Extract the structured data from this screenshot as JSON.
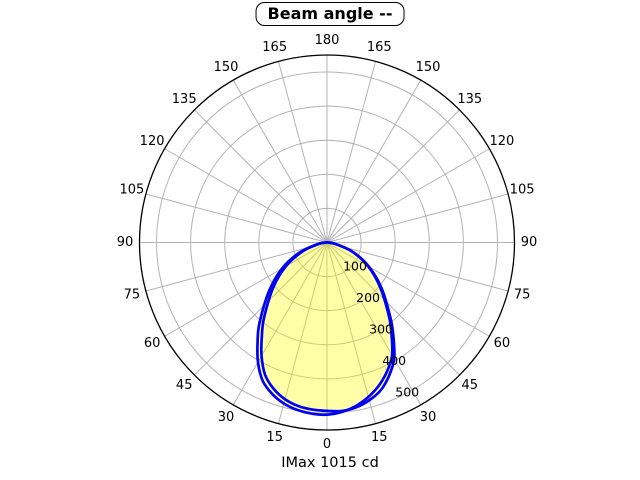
{
  "chart_data": {
    "type": "polar",
    "title": "Beam angle --",
    "footer": "IMax 1015 cd",
    "angle_unit": "degrees",
    "angle_zero_position": "bottom",
    "angle_tick_step_deg": 15,
    "angle_labels": [
      "0",
      "15",
      "30",
      "45",
      "60",
      "75",
      "90",
      "105",
      "120",
      "135",
      "150",
      "165",
      "180"
    ],
    "r_ticks": [
      100,
      200,
      300,
      400,
      500
    ],
    "r_tick_labels": [
      "100",
      "200",
      "300",
      "400",
      "500"
    ],
    "r_axis_max": 550,
    "grid": true,
    "legend": "none",
    "colors": {
      "curve_stroke": "#0000f2",
      "curve_fill": "rgba(255,255,0,0.19)",
      "grid_line": "#b3b3b3",
      "outer_ring": "#000000",
      "text": "#000000",
      "background": "#ffffff"
    },
    "series": [
      {
        "name": "beam-curve-1",
        "points": [
          [
            -90,
            3
          ],
          [
            -80,
            28
          ],
          [
            -70,
            85
          ],
          [
            -60,
            152
          ],
          [
            -50,
            222
          ],
          [
            -40,
            308
          ],
          [
            -35,
            355
          ],
          [
            -30,
            405
          ],
          [
            -25,
            447
          ],
          [
            -20,
            472
          ],
          [
            -15,
            489
          ],
          [
            -10,
            499
          ],
          [
            -5,
            504
          ],
          [
            0,
            505
          ],
          [
            5,
            499
          ],
          [
            10,
            487
          ],
          [
            15,
            469
          ],
          [
            20,
            446
          ],
          [
            25,
            417
          ],
          [
            30,
            382
          ],
          [
            35,
            330
          ],
          [
            40,
            283
          ],
          [
            50,
            203
          ],
          [
            60,
            139
          ],
          [
            70,
            79
          ],
          [
            80,
            25
          ],
          [
            90,
            3
          ]
        ]
      },
      {
        "name": "beam-curve-2",
        "points": [
          [
            -90,
            3
          ],
          [
            -80,
            24
          ],
          [
            -70,
            76
          ],
          [
            -60,
            139
          ],
          [
            -50,
            206
          ],
          [
            -40,
            287
          ],
          [
            -35,
            333
          ],
          [
            -30,
            384
          ],
          [
            -25,
            429
          ],
          [
            -20,
            457
          ],
          [
            -15,
            476
          ],
          [
            -10,
            487
          ],
          [
            -5,
            492
          ],
          [
            0,
            494
          ],
          [
            5,
            496
          ],
          [
            10,
            491
          ],
          [
            15,
            479
          ],
          [
            20,
            461
          ],
          [
            25,
            431
          ],
          [
            30,
            394
          ],
          [
            35,
            340
          ],
          [
            40,
            290
          ],
          [
            50,
            209
          ],
          [
            60,
            142
          ],
          [
            70,
            81
          ],
          [
            80,
            26
          ],
          [
            90,
            3
          ]
        ]
      }
    ]
  }
}
